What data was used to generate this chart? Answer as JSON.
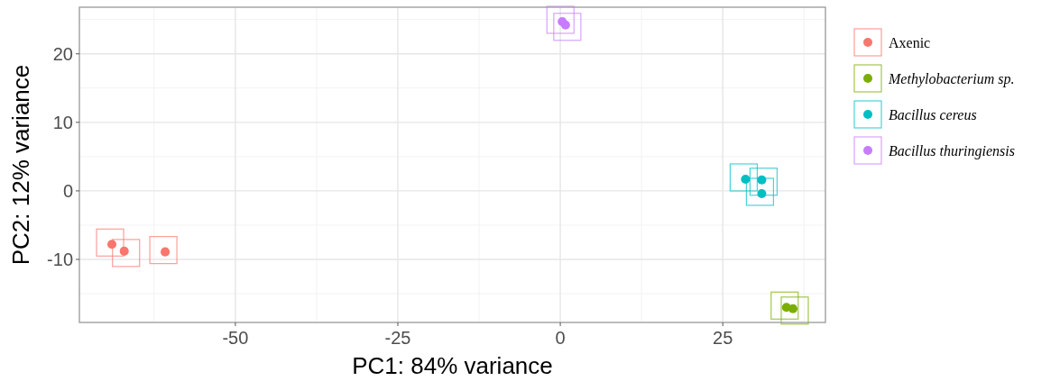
{
  "chart_data": {
    "type": "scatter",
    "xlabel": "PC1: 84% variance",
    "ylabel": "PC2: 12% variance",
    "xlim": [
      -74,
      40.8
    ],
    "ylim": [
      -19.2,
      26.8
    ],
    "xticks": [
      -50,
      -25,
      0,
      25
    ],
    "yticks": [
      -10,
      0,
      10,
      20
    ],
    "grid": true,
    "legend": "right",
    "marker": "circle",
    "series": [
      {
        "name": "Axenic",
        "color": "#f8766d",
        "x": [
          -69.0,
          -67.1,
          -60.8
        ],
        "values": [
          -7.8,
          -8.8,
          -8.9
        ]
      },
      {
        "name": "Methylobacterium sp.",
        "color": "#7cae00",
        "x": [
          34.8,
          35.8
        ],
        "values": [
          -17.0,
          -17.2
        ]
      },
      {
        "name": "Bacillus cereus",
        "color": "#00bfc4",
        "x": [
          28.5,
          31.0,
          31.0
        ],
        "values": [
          1.7,
          1.6,
          -0.4
        ]
      },
      {
        "name": "Bacillus thuringiensis",
        "color": "#c77cff",
        "x": [
          0.3,
          0.8
        ],
        "values": [
          24.7,
          24.2
        ]
      }
    ]
  }
}
